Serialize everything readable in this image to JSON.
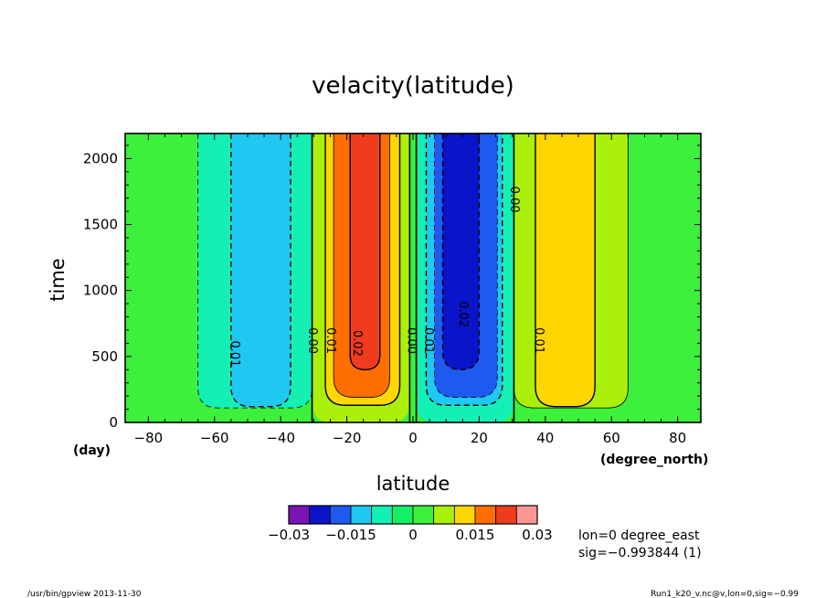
{
  "chart_data": {
    "type": "heatmap",
    "title": "velacity(latitude)",
    "xlabel": "latitude",
    "ylabel": "time",
    "x_unit": "(degree_north)",
    "y_unit": "(day)",
    "xlim": [
      -87,
      87
    ],
    "ylim": [
      0,
      2190
    ],
    "x_ticks": [
      -80,
      -60,
      -40,
      -20,
      0,
      20,
      40,
      60,
      80
    ],
    "y_ticks": [
      0,
      500,
      1000,
      1500,
      2000
    ],
    "grid": false,
    "colorbar": {
      "levels": [
        -0.03,
        -0.025,
        -0.02,
        -0.015,
        -0.01,
        -0.005,
        0,
        0.005,
        0.01,
        0.015,
        0.02,
        0.025,
        0.03
      ],
      "colors": [
        "#7a14b4",
        "#0a14c8",
        "#1e5af0",
        "#1ec8f0",
        "#14f0b4",
        "#14f064",
        "#3cf03c",
        "#aaf00a",
        "#ffd700",
        "#ff6e00",
        "#f03c1e",
        "#ff9696"
      ],
      "tick_labels": [
        "−0.03",
        "−0.015",
        "0",
        "0.015",
        "0.03"
      ],
      "tick_values": [
        -0.03,
        -0.015,
        0,
        0.015,
        0.03
      ]
    },
    "bands": [
      {
        "x0": -65,
        "x1": -30.5,
        "color": "#14f0b4",
        "bottom": 110
      },
      {
        "x0": -55,
        "x1": -37,
        "color": "#1ec8f0",
        "bottom": 120
      },
      {
        "x0": -30.5,
        "x1": -1,
        "color": "#aaf00a",
        "bottom": 0
      },
      {
        "x0": -26.5,
        "x1": -4,
        "color": "#ffd700",
        "bottom": 130
      },
      {
        "x0": -24,
        "x1": -7,
        "color": "#ff6e00",
        "bottom": 190
      },
      {
        "x0": -19,
        "x1": -10,
        "color": "#f03c1e",
        "bottom": 400
      },
      {
        "x0": 1,
        "x1": 30.5,
        "color": "#14f0b4",
        "bottom": 0
      },
      {
        "x0": 4,
        "x1": 27,
        "color": "#1ec8f0",
        "bottom": 130
      },
      {
        "x0": 6.5,
        "x1": 25.5,
        "color": "#1e5af0",
        "bottom": 190
      },
      {
        "x0": 9,
        "x1": 20,
        "color": "#0a14c8",
        "bottom": 400
      },
      {
        "x0": 30.5,
        "x1": 65,
        "color": "#aaf00a",
        "bottom": 110
      },
      {
        "x0": 37,
        "x1": 55,
        "color": "#ffd700",
        "bottom": 120
      }
    ],
    "contours": [
      {
        "x0": -55,
        "x1": -37,
        "bottom": 120,
        "dashed": true
      },
      {
        "x0": -65,
        "x1": -30.5,
        "bottom": 110,
        "dashed": true,
        "thin": true
      },
      {
        "x0": -26.5,
        "x1": -4,
        "bottom": 130,
        "dashed": false
      },
      {
        "x0": -24,
        "x1": -7,
        "bottom": 190,
        "dashed": false,
        "thin": true
      },
      {
        "x0": -19,
        "x1": -10,
        "bottom": 400,
        "dashed": false
      },
      {
        "x0": 4,
        "x1": 27,
        "bottom": 130,
        "dashed": true
      },
      {
        "x0": 6.5,
        "x1": 25.5,
        "bottom": 190,
        "dashed": true,
        "thin": true
      },
      {
        "x0": 9,
        "x1": 20,
        "bottom": 400,
        "dashed": true
      },
      {
        "x0": 37,
        "x1": 55,
        "bottom": 120,
        "dashed": false
      },
      {
        "x0": 30.5,
        "x1": 65,
        "bottom": 110,
        "dashed": false,
        "thin": true
      }
    ],
    "zero_lines": [
      -30.5,
      -1,
      1,
      30.5
    ],
    "contour_labels": [
      {
        "text": "0.01",
        "x": -54,
        "y": 520
      },
      {
        "text": "0.00",
        "x": -30.5,
        "y": 620
      },
      {
        "text": "0.01",
        "x": -25,
        "y": 620
      },
      {
        "text": "0.02",
        "x": -17,
        "y": 600
      },
      {
        "text": "0.00",
        "x": -0.5,
        "y": 620
      },
      {
        "text": "0.01",
        "x": 4.5,
        "y": 620
      },
      {
        "text": "0.02",
        "x": 15,
        "y": 820
      },
      {
        "text": "0.00",
        "x": 30.5,
        "y": 1690
      },
      {
        "text": "0.01",
        "x": 38,
        "y": 620
      }
    ]
  },
  "info": {
    "line1": "lon=0 degree_east",
    "line2": "sig=−0.993844 (1)"
  },
  "footer": {
    "left": "/usr/bin/gpview   2013-11-30",
    "right": "Run1_k20_v.nc@v,lon=0,sig=−0.99"
  },
  "background_color": "#3cf03c"
}
